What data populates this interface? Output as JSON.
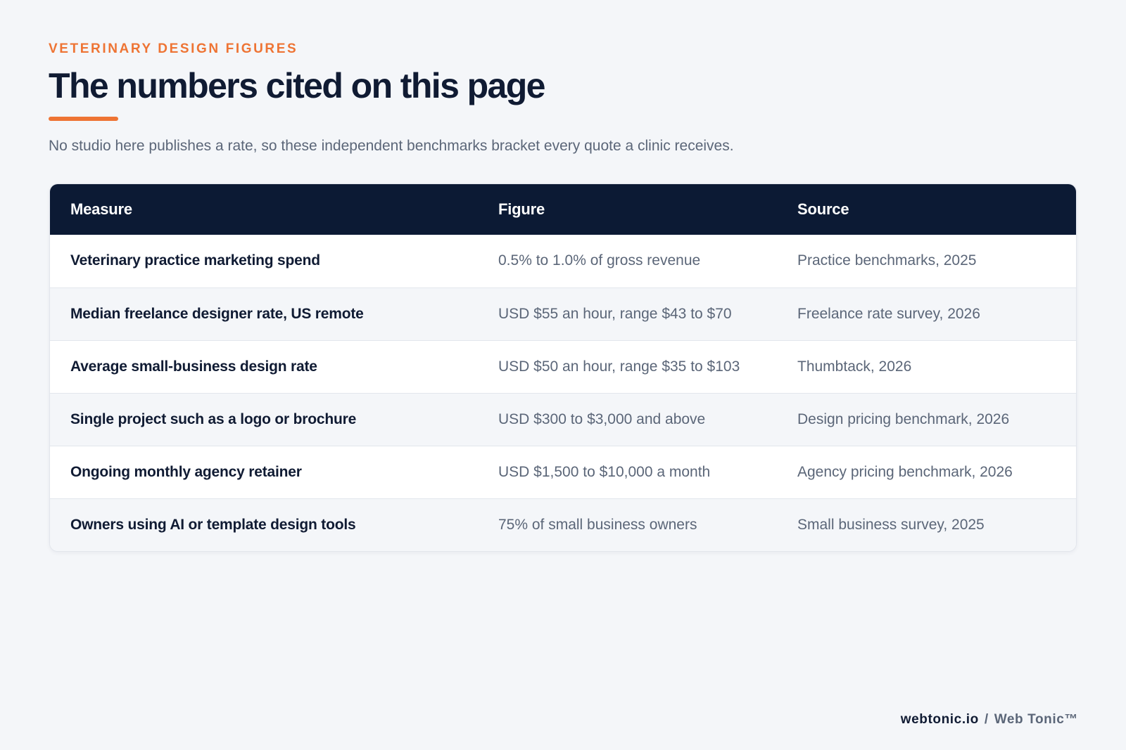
{
  "header": {
    "eyebrow": "VETERINARY DESIGN FIGURES",
    "title": "The numbers cited on this page",
    "subtitle": "No studio here publishes a rate, so these independent benchmarks bracket every quote a clinic receives."
  },
  "table": {
    "columns": [
      "Measure",
      "Figure",
      "Source"
    ],
    "rows": [
      {
        "measure": "Veterinary practice marketing spend",
        "figure": "0.5% to 1.0% of gross revenue",
        "source": "Practice benchmarks, 2025"
      },
      {
        "measure": "Median freelance designer rate, US remote",
        "figure": "USD $55 an hour, range $43 to $70",
        "source": "Freelance rate survey, 2026"
      },
      {
        "measure": "Average small-business design rate",
        "figure": "USD $50 an hour, range $35 to $103",
        "source": "Thumbtack, 2026"
      },
      {
        "measure": "Single project such as a logo or brochure",
        "figure": "USD $300 to $3,000 and above",
        "source": "Design pricing benchmark, 2026"
      },
      {
        "measure": "Ongoing monthly agency retainer",
        "figure": "USD $1,500 to $10,000 a month",
        "source": "Agency pricing benchmark, 2026"
      },
      {
        "measure": "Owners using AI or template design tools",
        "figure": "75% of small business owners",
        "source": "Small business survey, 2025"
      }
    ]
  },
  "footer": {
    "domain": "webtonic.io",
    "separator": "/",
    "brand": "Web Tonic™"
  },
  "colors": {
    "accent": "#ee7434",
    "header_bg": "#0c1a34",
    "page_bg": "#f4f6f9",
    "text_dark": "#101b33",
    "text_muted": "#5b6678"
  }
}
